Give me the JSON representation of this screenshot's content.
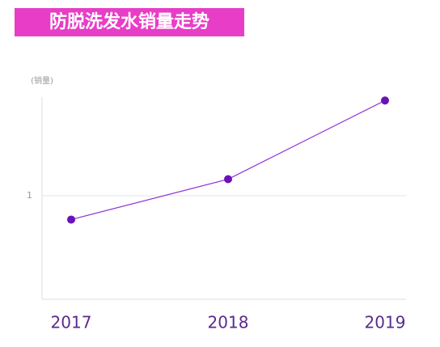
{
  "chart_data": {
    "type": "line",
    "title": "防脱洗发水销量走势",
    "y_label": "(销量)",
    "categories": [
      "2017",
      "2018",
      "2019"
    ],
    "series": [
      {
        "name": "销量",
        "color": "#8e2fd6",
        "values": [
          0.77,
          1.16,
          1.92
        ]
      }
    ],
    "ylim": [
      0,
      2
    ],
    "yticks": [
      1
    ],
    "grid": true
  }
}
